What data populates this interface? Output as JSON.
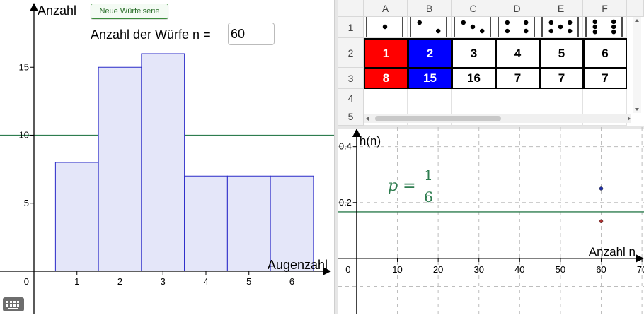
{
  "left_graph": {
    "y_axis_label": "Anzahl",
    "x_axis_label": "Augenzahl",
    "origin_label": "0",
    "x_ticks": [
      "1",
      "2",
      "3",
      "4",
      "5",
      "6"
    ],
    "y_ticks": [
      "5",
      "10",
      "15"
    ],
    "new_series_button": "Neue Würfelserie",
    "throws_label": "Anzahl der Würfe n =",
    "throws_value": "60"
  },
  "chart_data": [
    {
      "type": "bar",
      "categories": [
        "1",
        "2",
        "3",
        "4",
        "5",
        "6"
      ],
      "values": [
        8,
        15,
        16,
        7,
        7,
        7
      ],
      "xlabel": "Augenzahl",
      "ylabel": "Anzahl",
      "ylim": [
        0,
        18
      ],
      "reference_line_y": 10,
      "grid": false,
      "bar_fill": "#e4e6f9",
      "bar_stroke": "#2a2ac8",
      "line_color": "#2e7d4f"
    },
    {
      "type": "scatter",
      "xlabel": "Anzahl n",
      "ylabel": "h(n)",
      "x_ticks": [
        "0",
        "10",
        "20",
        "30",
        "40",
        "50",
        "60",
        "70"
      ],
      "y_ticks": [
        "0.2",
        "0.4"
      ],
      "xlim": [
        -4.5,
        70.5
      ],
      "ylim": [
        -0.2,
        0.47
      ],
      "reference_line_y": 0.1667,
      "grid": true,
      "series": [
        {
          "color": "#1e2ea6",
          "points": [
            [
              60,
              0.25
            ]
          ]
        },
        {
          "color": "#b03030",
          "points": [
            [
              60,
              0.133
            ]
          ]
        }
      ]
    }
  ],
  "spreadsheet": {
    "columns": [
      "A",
      "B",
      "C",
      "D",
      "E",
      "F"
    ],
    "rows": [
      "1",
      "2",
      "3",
      "4",
      "5"
    ],
    "dice": [
      1,
      2,
      3,
      4,
      5,
      6
    ],
    "row2": [
      "1",
      "2",
      "3",
      "4",
      "5",
      "6"
    ],
    "row3": [
      "8",
      "15",
      "16",
      "7",
      "7",
      "7"
    ],
    "highlight": {
      "A": "#ff0000",
      "B": "#0000ff"
    }
  },
  "formula": {
    "p": "p =",
    "numerator": "1",
    "denominator": "6"
  },
  "icons": {
    "keyboard": "keyboard-icon"
  }
}
